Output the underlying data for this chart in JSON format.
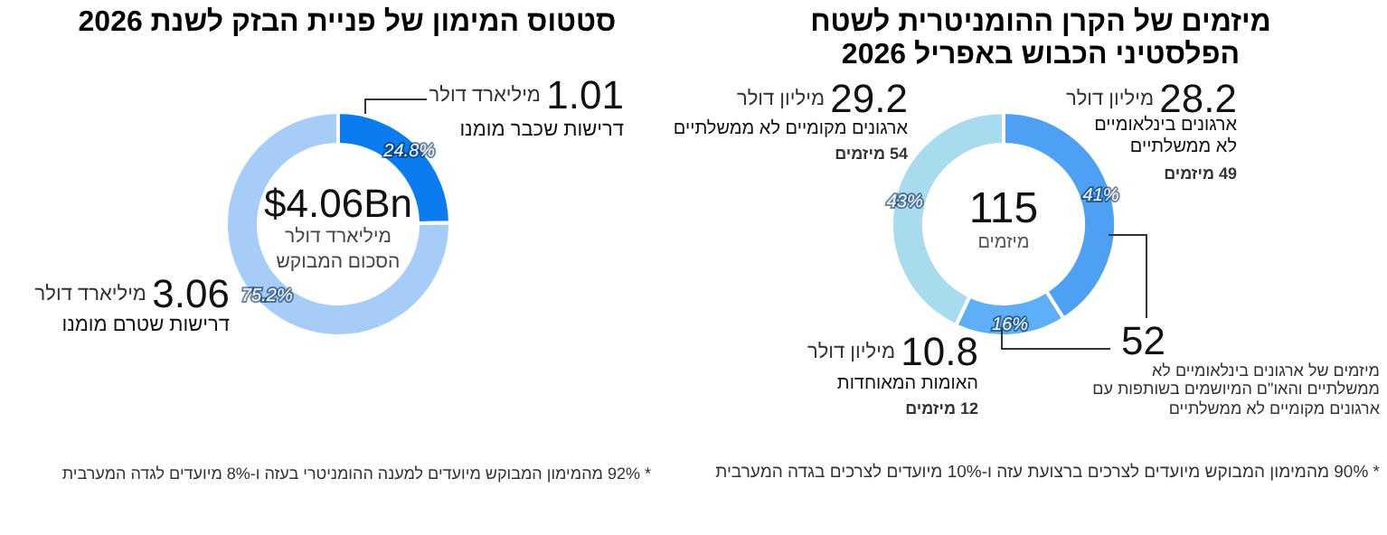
{
  "chart_data": [
    {
      "type": "donut",
      "title": "מיזמים של הקרן ההומניטרית לשטח הפלסטיני הכבוש באפריל 2026",
      "categories": [
        "ארגונים בינלאומיים לא ממשלתיים",
        "האומות המאוחדות",
        "ארגונים מקומיים לא ממשלתיים"
      ],
      "values": [
        41,
        16,
        43
      ],
      "colors": [
        "#4da0f4",
        "#5eaff6",
        "#a9dbef"
      ],
      "value_labels": [
        "41%",
        "16%",
        "43%"
      ],
      "annotations": [
        "115",
        "מיזמים",
        "28.2",
        "מיליון דולר",
        "49 מיזמים",
        "29.2",
        "מיליון דולר",
        "54 מיזמים",
        "10.8",
        "מיליון דולר",
        "12 מיזמים",
        "52",
        "מיזמים של ארגונים בינלאומיים לא ממשלתיים והאו\"ם המיושמים בשותפות עם ארגונים מקומיים לא ממשלתיים",
        "* 90% מהמימון המבוקש מיועדים לצרכים ברצועת עזה ו-10% מיועדים לצרכים בגדה המערבית"
      ]
    },
    {
      "type": "donut",
      "title": "סטטוס המימון של פניית הבזק לשנת 2026",
      "categories": [
        "דרישות שכבר מומנו",
        "דרישות שטרם מומנו"
      ],
      "values": [
        24.8,
        75.2
      ],
      "colors": [
        "#0a7cf0",
        "#a6cdf8"
      ],
      "value_labels": [
        "24.8%",
        "75.2%"
      ],
      "annotations": [
        "$4.06Bn",
        "מיליארד דולר",
        "הסכום המבוקש",
        "1.01",
        "מיליארד דולר",
        "3.06",
        "מיליארד דולר",
        "* 92% מהמימון המבוקש מיועדים למענה ההומניטרי בעזה ו-8% מיועדים לגדה המערבית"
      ]
    }
  ]
}
